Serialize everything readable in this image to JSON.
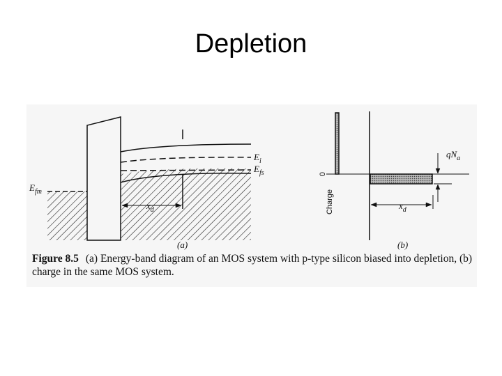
{
  "title": "Depletion",
  "figure": {
    "panel_a": {
      "label": "(a)",
      "levels": [
        {
          "main": "E",
          "sub": "fm"
        },
        {
          "main": "E",
          "sub": "i"
        },
        {
          "main": "E",
          "sub": "fs"
        }
      ],
      "width": {
        "main": "x",
        "sub": "d"
      }
    },
    "panel_b": {
      "label": "(b)",
      "zero": "0",
      "axis": "Charge",
      "density": {
        "main": "qN",
        "sub": "a"
      },
      "width": {
        "main": "x",
        "sub": "d"
      }
    },
    "caption": {
      "label": "Figure 8.5",
      "text": "(a) Energy-band diagram of an MOS system with p-type silicon biased into depletion, (b) charge in the same MOS system."
    }
  }
}
